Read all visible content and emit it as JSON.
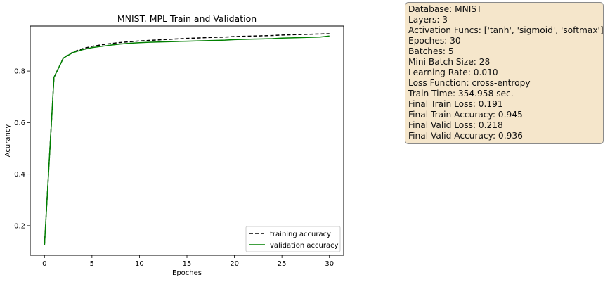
{
  "chart_data": {
    "type": "line",
    "title": "MNIST. MPL Train and Validation",
    "xlabel": "Epoches",
    "ylabel": "Acurancy",
    "xlim": [
      -1.5,
      31.5
    ],
    "ylim": [
      0.085,
      0.975
    ],
    "xticks": [
      0,
      5,
      10,
      15,
      20,
      25,
      30
    ],
    "yticks": [
      0.2,
      0.4,
      0.6,
      0.8
    ],
    "grid": false,
    "legend_position": "lower-right",
    "x": [
      0,
      1,
      2,
      3,
      4,
      5,
      6,
      7,
      8,
      9,
      10,
      11,
      12,
      13,
      14,
      15,
      16,
      17,
      18,
      19,
      20,
      21,
      22,
      23,
      24,
      25,
      26,
      27,
      28,
      29,
      30
    ],
    "series": [
      {
        "name": "training accuracy",
        "color": "#000000",
        "style": "dashed",
        "values": [
          0.125,
          0.775,
          0.852,
          0.874,
          0.887,
          0.896,
          0.902,
          0.907,
          0.911,
          0.914,
          0.917,
          0.919,
          0.921,
          0.923,
          0.925,
          0.927,
          0.928,
          0.93,
          0.931,
          0.932,
          0.934,
          0.935,
          0.936,
          0.937,
          0.938,
          0.94,
          0.941,
          0.942,
          0.943,
          0.944,
          0.945
        ]
      },
      {
        "name": "validation accuracy",
        "color": "#008000",
        "style": "solid",
        "values": [
          0.125,
          0.776,
          0.851,
          0.872,
          0.883,
          0.891,
          0.896,
          0.901,
          0.905,
          0.908,
          0.91,
          0.912,
          0.913,
          0.914,
          0.915,
          0.916,
          0.917,
          0.918,
          0.919,
          0.92,
          0.922,
          0.923,
          0.924,
          0.925,
          0.926,
          0.928,
          0.929,
          0.93,
          0.931,
          0.932,
          0.936
        ]
      }
    ]
  },
  "infobox": {
    "lines": [
      "Database: MNIST",
      "Layers: 3",
      "Activation Funcs: ['tanh', 'sigmoid', 'softmax']",
      "Epoches: 30",
      "Batches: 5",
      "Mini Batch Size: 28",
      "Learning Rate: 0.010",
      "Loss Function: cross-entropy",
      "Train Time: 354.958 sec.",
      "Final Train Loss: 0.191",
      "Final Train Accuracy: 0.945",
      "Final Valid Loss: 0.218",
      "Final Valid Accuracy: 0.936"
    ],
    "background": "#f5e6cb",
    "border": "#8a8a8a"
  }
}
